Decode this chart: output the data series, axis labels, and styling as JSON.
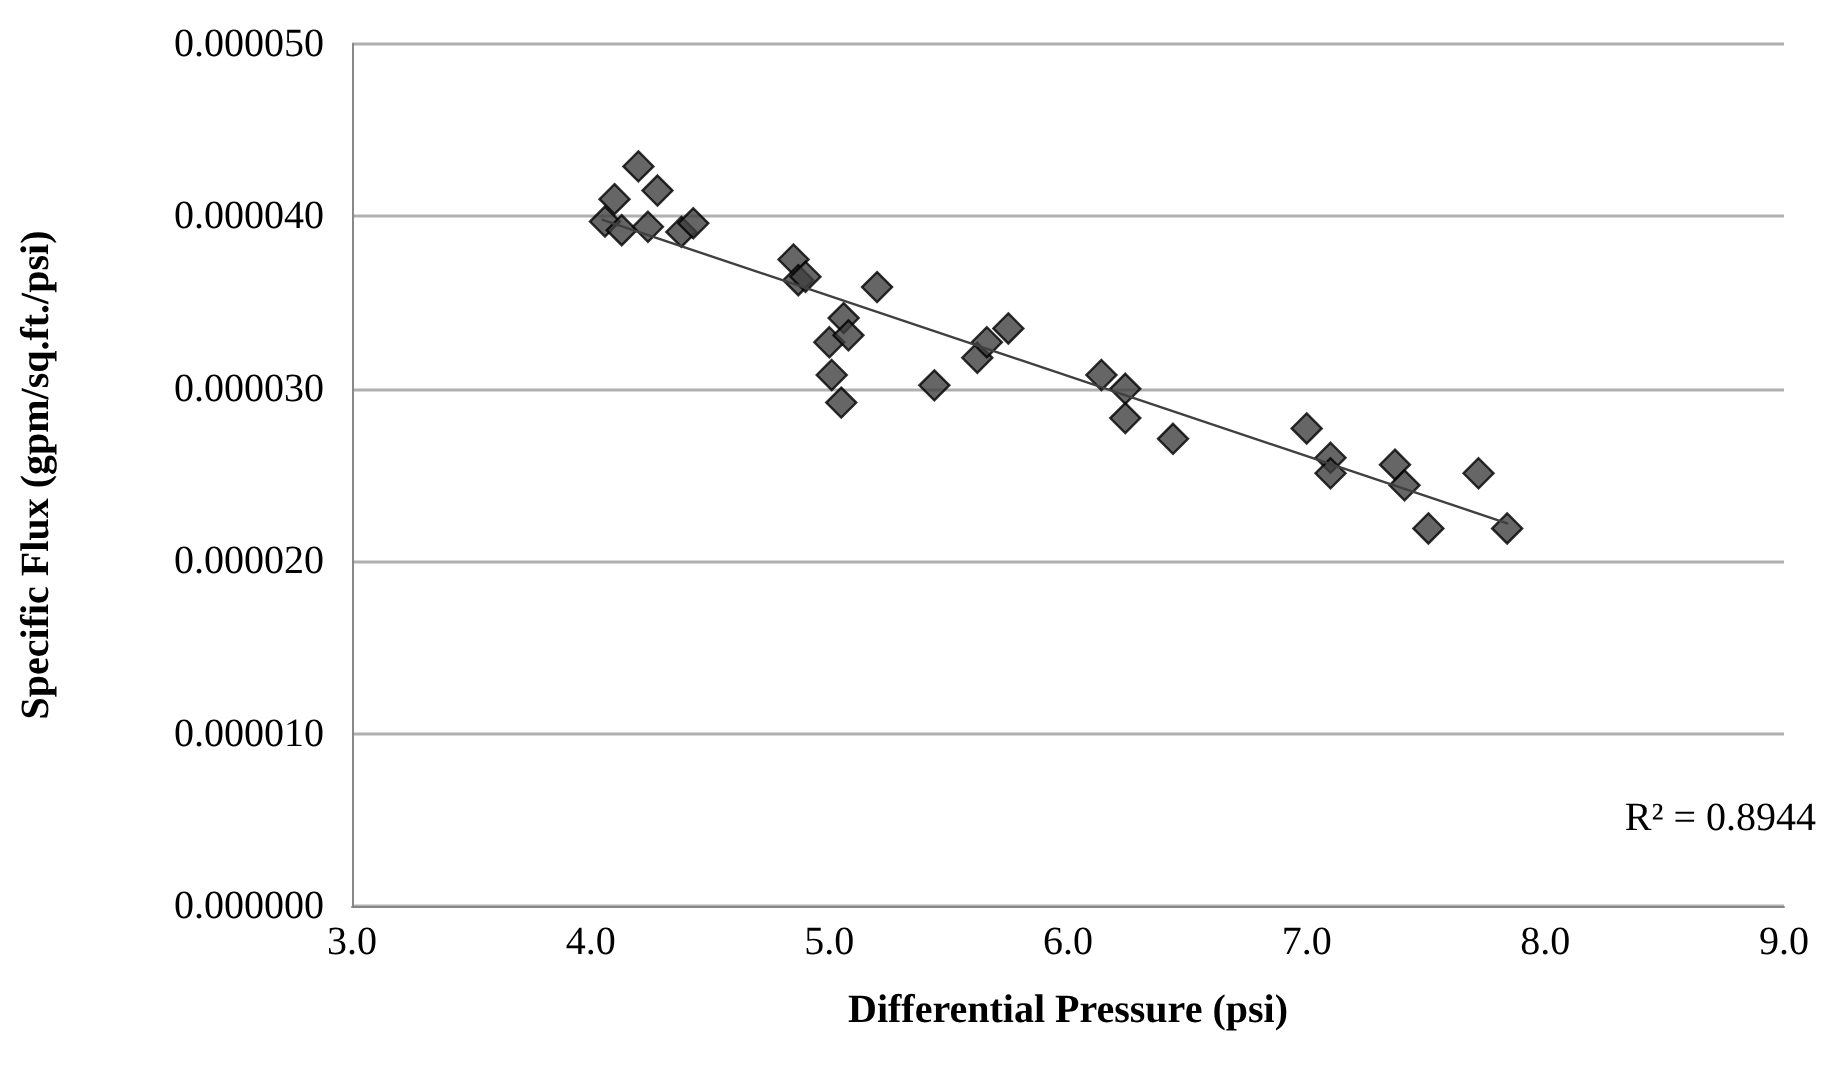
{
  "chart_data": {
    "type": "scatter",
    "xlabel": "Differential Pressure (psi)",
    "ylabel": "Specific Flux (gpm/sq.ft./psi)",
    "xlim": [
      3,
      9
    ],
    "xticks": [
      {
        "value": 3,
        "label": "3.0"
      },
      {
        "value": 4,
        "label": "4.0"
      },
      {
        "value": 5,
        "label": "5.0"
      },
      {
        "value": 6,
        "label": "6.0"
      },
      {
        "value": 7,
        "label": "7.0"
      },
      {
        "value": 8,
        "label": "8.0"
      },
      {
        "value": 9,
        "label": "9.0"
      }
    ],
    "ylim": [
      0,
      5e-05
    ],
    "yticks": [
      {
        "value": 0,
        "label": "0.000000"
      },
      {
        "value": 1e-05,
        "label": "0.000010"
      },
      {
        "value": 2e-05,
        "label": "0.000020"
      },
      {
        "value": 3e-05,
        "label": "0.000030"
      },
      {
        "value": 4e-05,
        "label": "0.000040"
      },
      {
        "value": 5e-05,
        "label": "0.000050"
      }
    ],
    "grid": "y",
    "marker": "diamond",
    "series": [
      {
        "color": "#404040",
        "x": [
          4.06,
          4.1,
          4.13,
          4.2,
          4.28,
          4.24,
          4.38,
          4.43,
          4.85,
          4.87,
          4.9,
          5.2,
          5.0,
          5.06,
          5.08,
          5.01,
          5.05,
          5.44,
          5.62,
          5.66,
          5.75,
          6.14,
          6.24,
          6.24,
          6.44,
          7.0,
          7.1,
          7.1,
          7.37,
          7.41,
          7.51,
          7.72,
          7.84
        ],
        "values": [
          3.97e-05,
          4.1e-05,
          3.92e-05,
          4.29e-05,
          4.15e-05,
          3.94e-05,
          3.91e-05,
          3.96e-05,
          3.75e-05,
          3.63e-05,
          3.65e-05,
          3.59e-05,
          3.27e-05,
          3.41e-05,
          3.31e-05,
          3.08e-05,
          2.92e-05,
          3.02e-05,
          3.18e-05,
          3.27e-05,
          3.35e-05,
          3.08e-05,
          3e-05,
          2.83e-05,
          2.71e-05,
          2.77e-05,
          2.6e-05,
          2.51e-05,
          2.56e-05,
          2.44e-05,
          2.19e-05,
          2.51e-05,
          2.19e-05
        ]
      },
      {
        "type": "line",
        "color": "#404040",
        "marker": "none",
        "line_style": "solid",
        "x": [
          4.05,
          7.84
        ],
        "values": [
          3.98e-05,
          2.22e-05
        ]
      }
    ],
    "annotations": [
      "R² = 0.8944"
    ]
  }
}
